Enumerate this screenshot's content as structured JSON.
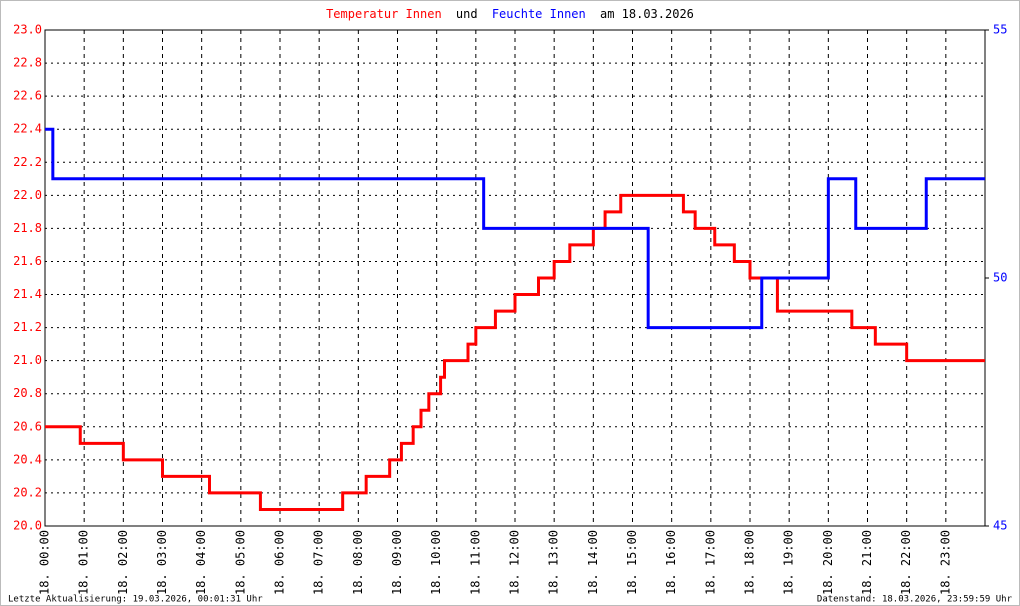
{
  "chart_data": {
    "type": "line",
    "title": {
      "connector": "und",
      "suffix": "am 18.03.2026"
    },
    "footer_left": "Letzte Aktualisierung: 19.03.2026, 00:01:31 Uhr",
    "footer_right": "Datenstand: 18.03.2026, 23:59:59 Uhr",
    "grid": true,
    "xlim": [
      0,
      24
    ],
    "xticks": [
      {
        "value": 0,
        "label": "18. 00:00"
      },
      {
        "value": 1,
        "label": "18. 01:00"
      },
      {
        "value": 2,
        "label": "18. 02:00"
      },
      {
        "value": 3,
        "label": "18. 03:00"
      },
      {
        "value": 4,
        "label": "18. 04:00"
      },
      {
        "value": 5,
        "label": "18. 05:00"
      },
      {
        "value": 6,
        "label": "18. 06:00"
      },
      {
        "value": 7,
        "label": "18. 07:00"
      },
      {
        "value": 8,
        "label": "18. 08:00"
      },
      {
        "value": 9,
        "label": "18. 09:00"
      },
      {
        "value": 10,
        "label": "18. 10:00"
      },
      {
        "value": 11,
        "label": "18. 11:00"
      },
      {
        "value": 12,
        "label": "18. 12:00"
      },
      {
        "value": 13,
        "label": "18. 13:00"
      },
      {
        "value": 14,
        "label": "18. 14:00"
      },
      {
        "value": 15,
        "label": "18. 15:00"
      },
      {
        "value": 16,
        "label": "18. 16:00"
      },
      {
        "value": 17,
        "label": "18. 17:00"
      },
      {
        "value": 18,
        "label": "18. 18:00"
      },
      {
        "value": 19,
        "label": "18. 19:00"
      },
      {
        "value": 20,
        "label": "18. 20:00"
      },
      {
        "value": 21,
        "label": "18. 21:00"
      },
      {
        "value": 22,
        "label": "18. 22:00"
      },
      {
        "value": 23,
        "label": "18. 23:00"
      }
    ],
    "ylim": [
      20,
      23
    ],
    "yticks": [
      {
        "value": 20,
        "label": "20.0"
      },
      20.2,
      20.4,
      20.6,
      20.8,
      {
        "value": 21,
        "label": "21.0"
      },
      21.2,
      21.4,
      21.6,
      21.8,
      {
        "value": 22,
        "label": "22.0"
      },
      22.2,
      22.4,
      22.6,
      22.8,
      {
        "value": 23,
        "label": "23.0"
      }
    ],
    "y2lim": [
      45,
      55
    ],
    "y2ticks": [
      45,
      50,
      55
    ],
    "series": [
      {
        "name": "Temperatur Innen",
        "color": "#ff0000",
        "x": [
          0,
          0.9,
          0.9,
          2.0,
          2.0,
          3.0,
          3.0,
          4.2,
          4.2,
          5.5,
          5.5,
          7.6,
          7.6,
          8.2,
          8.2,
          8.8,
          8.8,
          9.1,
          9.1,
          9.4,
          9.4,
          9.6,
          9.6,
          9.8,
          9.8,
          10.1,
          10.1,
          10.2,
          10.2,
          10.8,
          10.8,
          11.0,
          11.0,
          11.5,
          11.5,
          12.0,
          12.0,
          12.6,
          12.6,
          13.0,
          13.0,
          13.4,
          13.4,
          14.0,
          14.0,
          14.3,
          14.3,
          14.7,
          14.7,
          16.3,
          16.3,
          16.6,
          16.6,
          17.1,
          17.1,
          17.6,
          17.6,
          18.0,
          18.0,
          18.7,
          18.7,
          20.6,
          20.6,
          21.2,
          21.2,
          22.0,
          22.0,
          24
        ],
        "values": [
          20.6,
          20.6,
          20.5,
          20.5,
          20.4,
          20.4,
          20.3,
          20.3,
          20.2,
          20.2,
          20.1,
          20.1,
          20.2,
          20.2,
          20.3,
          20.3,
          20.4,
          20.4,
          20.5,
          20.5,
          20.6,
          20.6,
          20.7,
          20.7,
          20.8,
          20.8,
          20.9,
          20.9,
          21.0,
          21.0,
          21.1,
          21.1,
          21.2,
          21.2,
          21.3,
          21.3,
          21.4,
          21.4,
          21.5,
          21.5,
          21.6,
          21.6,
          21.7,
          21.7,
          21.8,
          21.8,
          21.9,
          21.9,
          22.0,
          22.0,
          21.9,
          21.9,
          21.8,
          21.8,
          21.7,
          21.7,
          21.6,
          21.6,
          21.5,
          21.5,
          21.3,
          21.3,
          21.2,
          21.2,
          21.1,
          21.1,
          21.0,
          21.0
        ]
      },
      {
        "name": "Feuchte Innen",
        "color": "#0000ff",
        "axis": "y2",
        "x": [
          0,
          0.2,
          0.2,
          11.2,
          11.2,
          15.4,
          15.4,
          18.3,
          18.3,
          20.0,
          20.0,
          20.7,
          20.7,
          22.5,
          22.5,
          24
        ],
        "values": [
          53,
          53,
          52,
          52,
          51,
          51,
          49,
          49,
          50,
          50,
          52,
          52,
          51,
          51,
          52,
          52
        ]
      }
    ]
  }
}
